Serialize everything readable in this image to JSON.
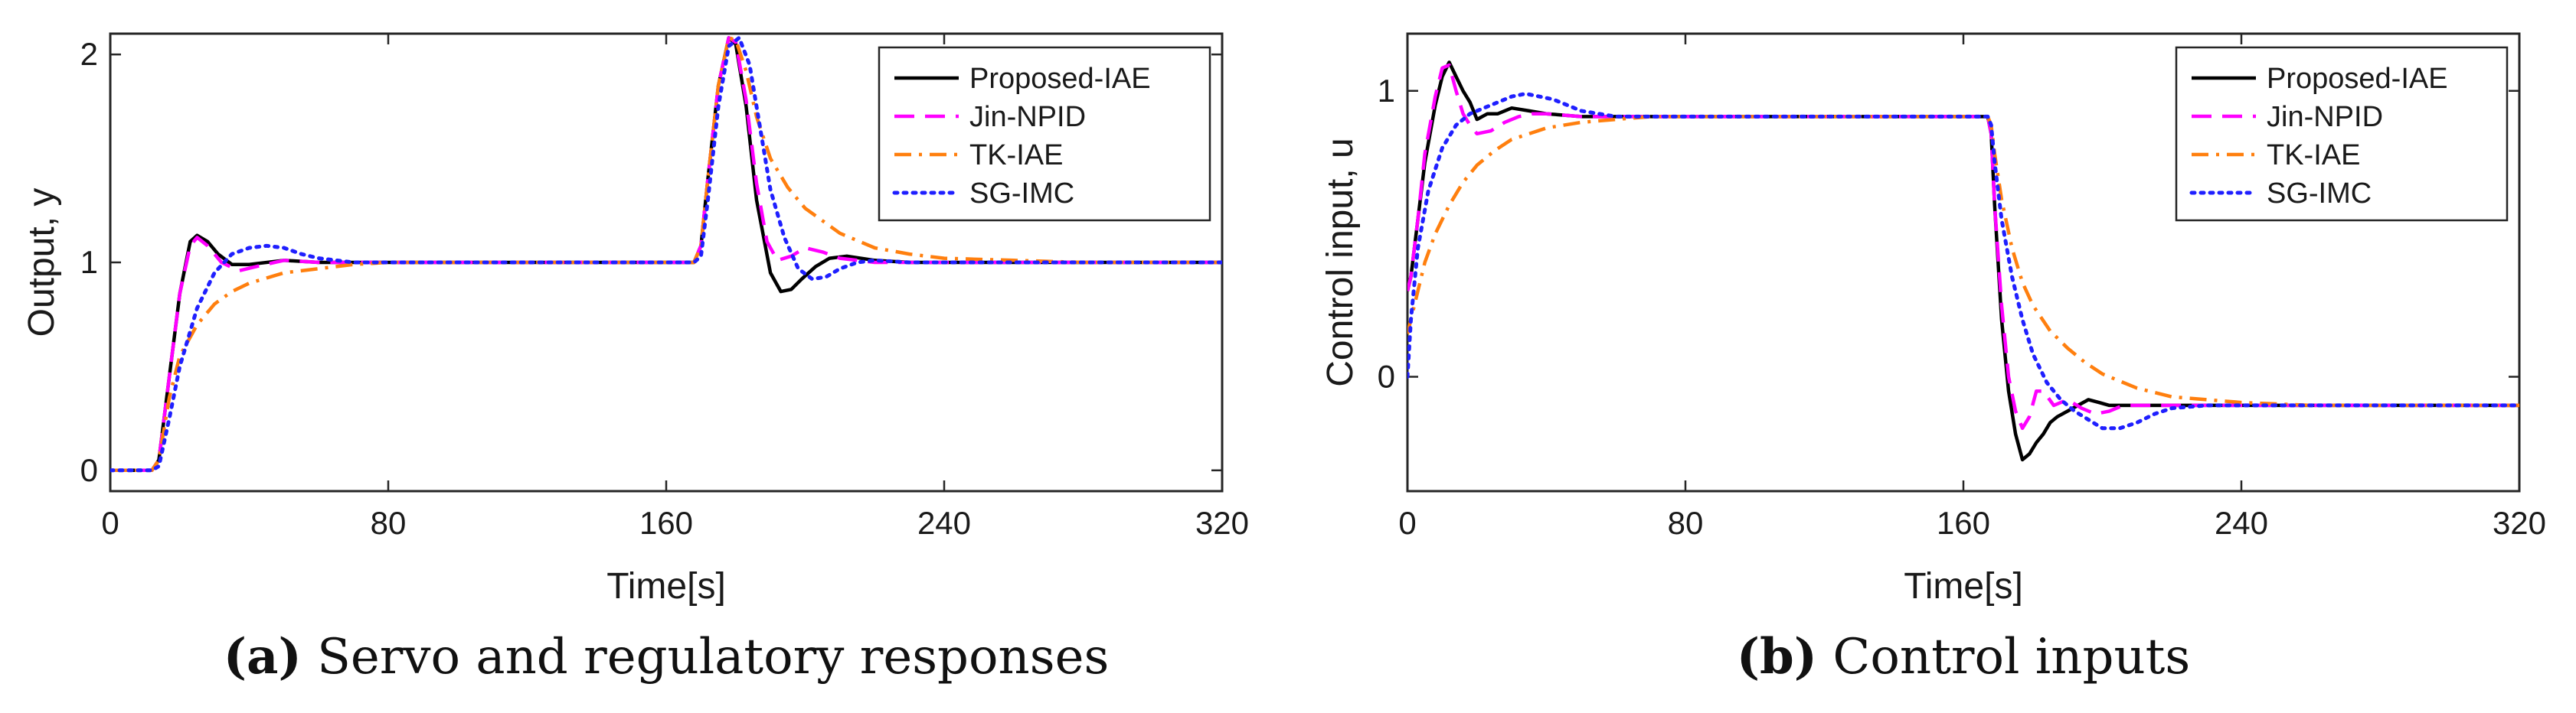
{
  "chart_data": [
    {
      "type": "line",
      "panel": "a",
      "caption_label": "(a)",
      "caption_text": "Servo and regulatory responses",
      "xlabel": "Time[s]",
      "ylabel": "Output, y",
      "xlim": [
        0,
        320
      ],
      "ylim": [
        -0.1,
        2.1
      ],
      "xticks": [
        0,
        80,
        160,
        240,
        320
      ],
      "yticks": [
        0,
        1,
        2
      ],
      "legend_position": "top-right",
      "series": [
        {
          "name": "Proposed-IAE",
          "color": "#000000",
          "style": "solid",
          "x": [
            0,
            12,
            14,
            17,
            20,
            23,
            25,
            28,
            31,
            35,
            40,
            50,
            60,
            80,
            120,
            168,
            170,
            172,
            175,
            178,
            180,
            183,
            186,
            190,
            193,
            196,
            199,
            203,
            207,
            212,
            220,
            230,
            250,
            280,
            320
          ],
          "y": [
            0,
            0,
            0.05,
            0.45,
            0.85,
            1.1,
            1.13,
            1.1,
            1.04,
            0.99,
            0.99,
            1.01,
            1.0,
            1.0,
            1.0,
            1.0,
            1.08,
            1.4,
            1.85,
            2.08,
            2.05,
            1.75,
            1.3,
            0.95,
            0.86,
            0.87,
            0.92,
            0.98,
            1.02,
            1.03,
            1.01,
            1.0,
            1.0,
            1.0,
            1.0
          ]
        },
        {
          "name": "Jin-NPID",
          "color": "#ff00ff",
          "style": "dashed",
          "x": [
            0,
            12,
            14,
            17,
            20,
            23,
            25,
            28,
            32,
            37,
            42,
            50,
            60,
            80,
            120,
            168,
            170,
            172,
            175,
            178,
            180,
            183,
            186,
            189,
            192,
            196,
            200,
            205,
            210,
            220,
            230,
            250,
            280,
            320
          ],
          "y": [
            0,
            0,
            0.05,
            0.45,
            0.85,
            1.08,
            1.12,
            1.08,
            1.0,
            0.96,
            0.98,
            1.01,
            1.0,
            1.0,
            1.0,
            1.0,
            1.08,
            1.4,
            1.85,
            2.08,
            2.06,
            1.78,
            1.38,
            1.1,
            1.01,
            1.03,
            1.07,
            1.05,
            1.02,
            1.0,
            1.0,
            1.0,
            1.0,
            1.0
          ]
        },
        {
          "name": "TK-IAE",
          "color": "#ff7f0e",
          "style": "dashdot",
          "x": [
            0,
            12,
            14,
            17,
            20,
            25,
            30,
            35,
            40,
            50,
            60,
            70,
            80,
            100,
            120,
            168,
            170,
            172,
            175,
            178,
            180,
            183,
            186,
            190,
            195,
            200,
            210,
            220,
            230,
            240,
            260,
            280,
            320
          ],
          "y": [
            0,
            0,
            0.05,
            0.35,
            0.55,
            0.7,
            0.8,
            0.86,
            0.9,
            0.95,
            0.97,
            0.99,
            1.0,
            1.0,
            1.0,
            1.0,
            1.08,
            1.4,
            1.85,
            2.08,
            2.07,
            1.92,
            1.7,
            1.5,
            1.36,
            1.26,
            1.14,
            1.07,
            1.04,
            1.02,
            1.01,
            1.0,
            1.0
          ]
        },
        {
          "name": "SG-IMC",
          "color": "#1f1fff",
          "style": "dotted",
          "x": [
            0,
            12,
            14,
            17,
            20,
            25,
            30,
            35,
            40,
            45,
            50,
            55,
            60,
            70,
            80,
            120,
            168,
            170,
            172,
            175,
            178,
            181,
            184,
            187,
            190,
            194,
            198,
            202,
            206,
            210,
            215,
            220,
            230,
            250,
            280,
            320
          ],
          "y": [
            0,
            0,
            0.02,
            0.25,
            0.5,
            0.78,
            0.95,
            1.04,
            1.07,
            1.08,
            1.07,
            1.04,
            1.02,
            1.0,
            1.0,
            1.0,
            1.0,
            1.03,
            1.3,
            1.75,
            2.04,
            2.08,
            1.95,
            1.65,
            1.35,
            1.12,
            0.97,
            0.92,
            0.93,
            0.97,
            1.0,
            1.01,
            1.0,
            1.0,
            1.0,
            1.0
          ]
        }
      ]
    },
    {
      "type": "line",
      "panel": "b",
      "caption_label": "(b)",
      "caption_text": "Control inputs",
      "xlabel": "Time[s]",
      "ylabel": "Control input, u",
      "xlim": [
        0,
        320
      ],
      "ylim": [
        -0.4,
        1.2
      ],
      "xticks": [
        0,
        80,
        160,
        240,
        320
      ],
      "yticks": [
        0,
        1
      ],
      "legend_position": "top-right",
      "series": [
        {
          "name": "Proposed-IAE",
          "color": "#000000",
          "style": "solid",
          "x": [
            0,
            1,
            3,
            5,
            8,
            10,
            12,
            14,
            16,
            18,
            20,
            23,
            26,
            30,
            35,
            40,
            50,
            60,
            80,
            120,
            167,
            168,
            169,
            171,
            173,
            175,
            177,
            179,
            181,
            183,
            185,
            187,
            190,
            193,
            196,
            199,
            202,
            206,
            210,
            215,
            220,
            230,
            260,
            320
          ],
          "y": [
            0.3,
            0.35,
            0.55,
            0.75,
            0.95,
            1.05,
            1.1,
            1.05,
            1.0,
            0.96,
            0.9,
            0.92,
            0.92,
            0.94,
            0.93,
            0.92,
            0.91,
            0.91,
            0.91,
            0.91,
            0.91,
            0.85,
            0.6,
            0.2,
            -0.05,
            -0.2,
            -0.29,
            -0.27,
            -0.23,
            -0.2,
            -0.16,
            -0.14,
            -0.12,
            -0.1,
            -0.08,
            -0.09,
            -0.1,
            -0.1,
            -0.1,
            -0.1,
            -0.1,
            -0.1,
            -0.1,
            -0.1
          ]
        },
        {
          "name": "Jin-NPID",
          "color": "#ff00ff",
          "style": "dashed",
          "x": [
            0,
            1,
            3,
            5,
            8,
            10,
            12,
            14,
            16,
            18,
            20,
            24,
            28,
            32,
            36,
            40,
            50,
            60,
            80,
            120,
            167,
            168,
            169,
            171,
            173,
            175,
            177,
            179,
            181,
            183,
            186,
            190,
            194,
            198,
            202,
            206,
            210,
            215,
            220,
            230,
            260,
            320
          ],
          "y": [
            0.3,
            0.35,
            0.55,
            0.78,
            0.98,
            1.08,
            1.09,
            1.0,
            0.92,
            0.88,
            0.85,
            0.86,
            0.89,
            0.91,
            0.92,
            0.92,
            0.91,
            0.91,
            0.91,
            0.91,
            0.91,
            0.85,
            0.6,
            0.25,
            0.0,
            -0.12,
            -0.18,
            -0.14,
            -0.05,
            -0.05,
            -0.1,
            -0.08,
            -0.11,
            -0.13,
            -0.12,
            -0.1,
            -0.1,
            -0.1,
            -0.1,
            -0.1,
            -0.1,
            -0.1
          ]
        },
        {
          "name": "TK-IAE",
          "color": "#ff7f0e",
          "style": "dashdot",
          "x": [
            0,
            1,
            3,
            5,
            8,
            12,
            16,
            20,
            25,
            30,
            40,
            50,
            60,
            70,
            80,
            100,
            120,
            167,
            168,
            169,
            171,
            174,
            177,
            180,
            185,
            190,
            195,
            200,
            210,
            220,
            230,
            240,
            260,
            280,
            320
          ],
          "y": [
            0.15,
            0.2,
            0.3,
            0.4,
            0.5,
            0.6,
            0.68,
            0.74,
            0.79,
            0.83,
            0.87,
            0.89,
            0.9,
            0.91,
            0.91,
            0.91,
            0.91,
            0.91,
            0.88,
            0.78,
            0.62,
            0.45,
            0.33,
            0.25,
            0.16,
            0.1,
            0.05,
            0.01,
            -0.04,
            -0.07,
            -0.08,
            -0.09,
            -0.1,
            -0.1,
            -0.1
          ]
        },
        {
          "name": "SG-IMC",
          "color": "#1f1fff",
          "style": "dotted",
          "x": [
            0,
            1,
            3,
            6,
            10,
            14,
            18,
            22,
            26,
            30,
            34,
            38,
            42,
            46,
            50,
            55,
            60,
            70,
            80,
            120,
            167,
            168,
            169,
            171,
            174,
            177,
            180,
            184,
            188,
            192,
            196,
            200,
            205,
            210,
            215,
            220,
            230,
            260,
            320
          ],
          "y": [
            0.0,
            0.2,
            0.45,
            0.65,
            0.8,
            0.88,
            0.92,
            0.94,
            0.96,
            0.98,
            0.99,
            0.98,
            0.97,
            0.95,
            0.93,
            0.92,
            0.91,
            0.91,
            0.91,
            0.91,
            0.91,
            0.88,
            0.75,
            0.55,
            0.35,
            0.2,
            0.08,
            -0.02,
            -0.08,
            -0.12,
            -0.15,
            -0.18,
            -0.18,
            -0.16,
            -0.13,
            -0.11,
            -0.1,
            -0.1,
            -0.1
          ]
        }
      ]
    }
  ]
}
